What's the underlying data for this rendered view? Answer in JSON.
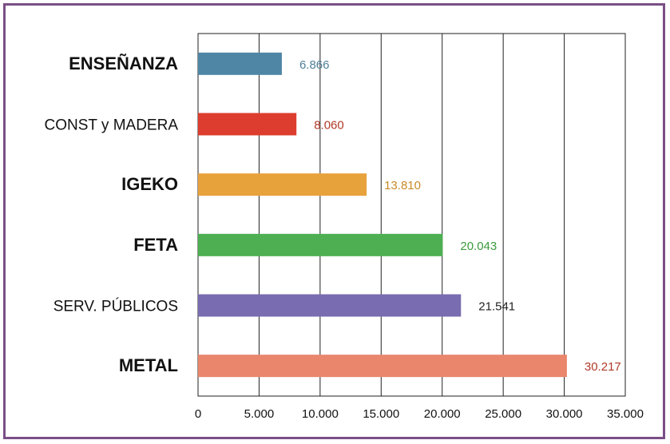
{
  "chart_data": {
    "type": "bar",
    "orientation": "horizontal",
    "categories": [
      "ENSEÑANZA",
      "CONST y MADERA",
      "IGEKO",
      "FETA",
      "SERV. PÚBLICOS",
      "METAL"
    ],
    "values": [
      6866,
      8060,
      13810,
      20043,
      21541,
      30217
    ],
    "value_labels": [
      "6.866",
      "8.060",
      "13.810",
      "20.043",
      "21.541",
      "30.217"
    ],
    "bar_colors": [
      "#4f86a5",
      "#dd3d2e",
      "#e8a23c",
      "#4daf52",
      "#7a6cb0",
      "#e9866c"
    ],
    "value_label_colors": [
      "#4f7f98",
      "#b03a28",
      "#c98a28",
      "#3c9a3c",
      "#222222",
      "#b03a28"
    ],
    "xlim": [
      0,
      35000
    ],
    "x_ticks": [
      0,
      5000,
      10000,
      15000,
      20000,
      25000,
      30000,
      35000
    ],
    "x_tick_labels": [
      "0",
      "5.000",
      "10.000",
      "15.000",
      "20.000",
      "25.000",
      "30.000",
      "35.000"
    ],
    "grid": "vertical",
    "title": "",
    "xlabel": "",
    "ylabel": ""
  }
}
